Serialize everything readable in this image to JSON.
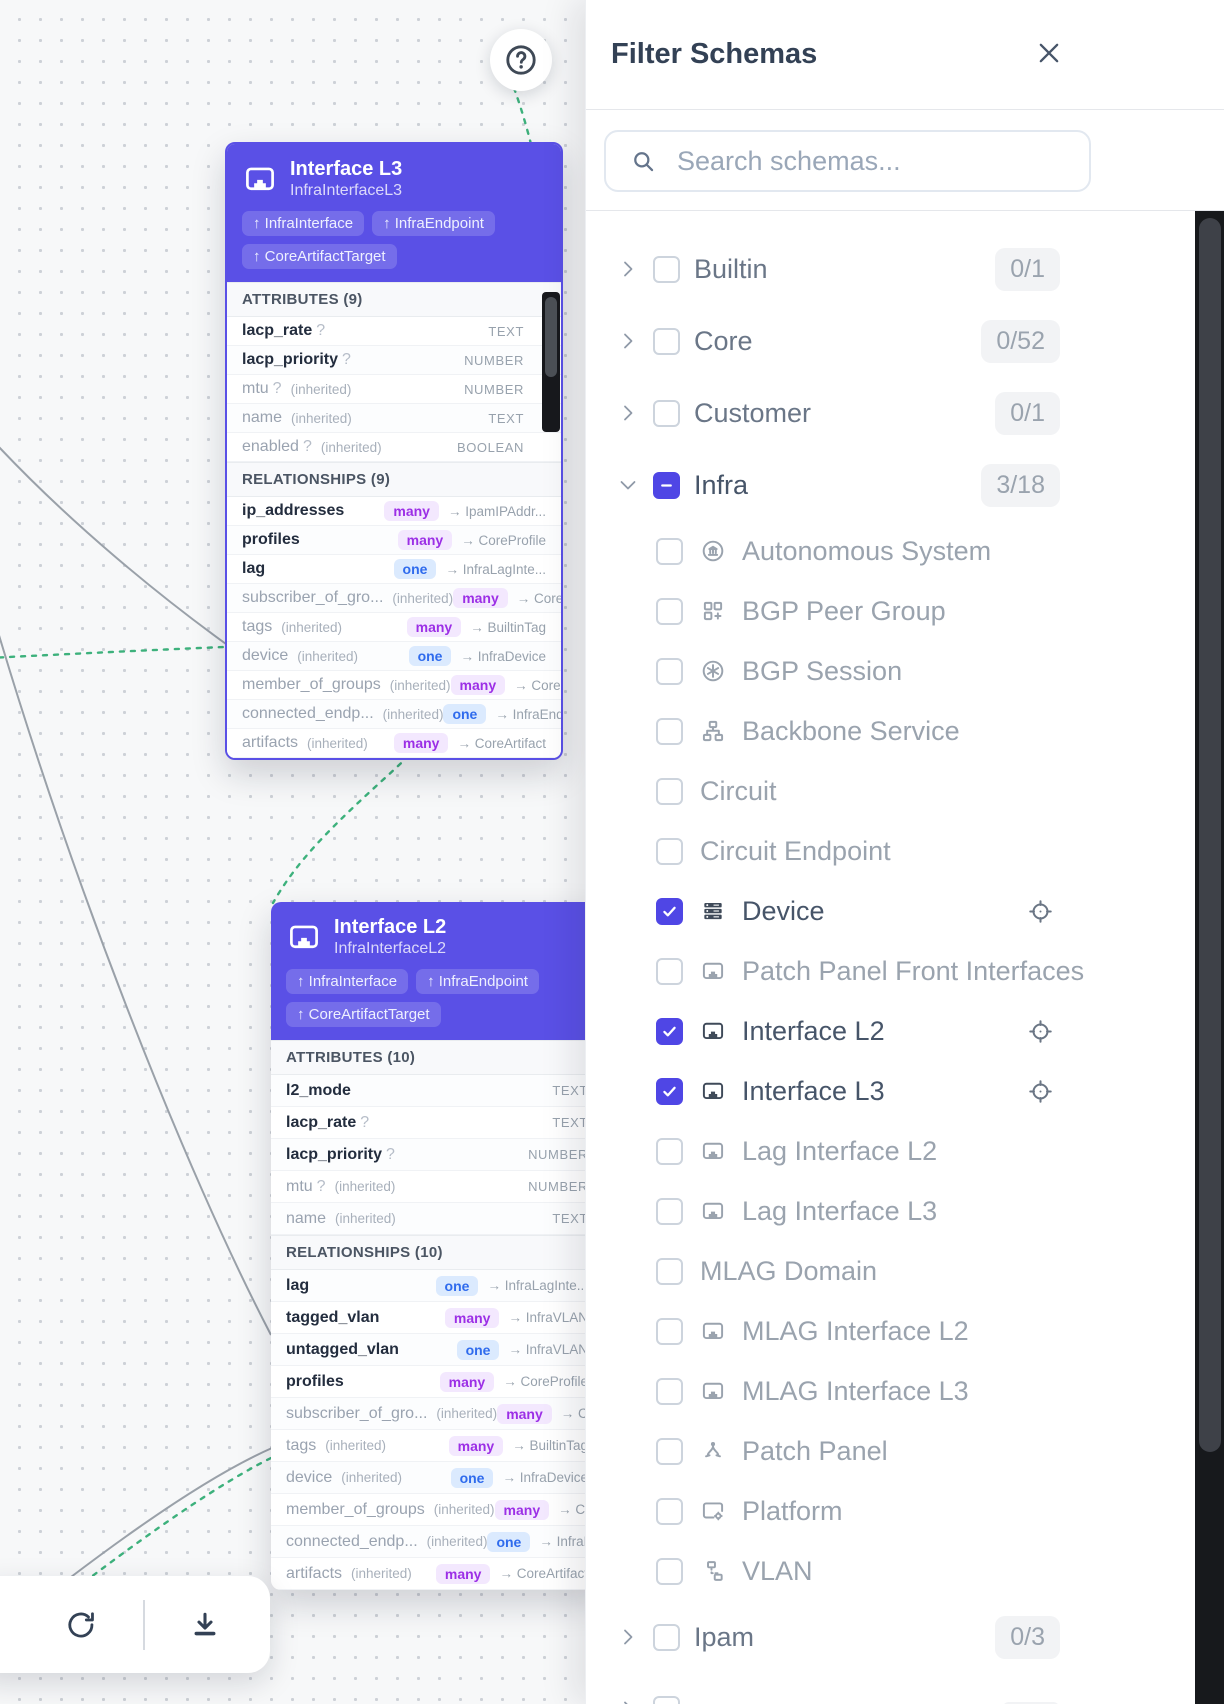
{
  "colors": {
    "accent": "#4f46e5",
    "card_header": "#5a50e6",
    "filter_button": "#6366f1",
    "many_badge": "#9c2fe6",
    "one_badge": "#2f6bed",
    "edge_green": "#3db17c",
    "edge_gray": "#9aa1a9"
  },
  "labels": {
    "inherited": "(inherited)",
    "optional_mark": "?",
    "arrow": "→"
  },
  "canvas": {
    "help_icon": "question-mark-icon",
    "toolbar": {
      "filter_icon": "filter-icon",
      "refresh_icon": "refresh-icon",
      "download_icon": "download-icon"
    },
    "cards": [
      {
        "title": "Interface L3",
        "subtitle": "InfraInterfaceL3",
        "icon": "ethernet-port-icon",
        "badges": [
          "↑ InfraInterface",
          "↑ InfraEndpoint",
          "↑ CoreArtifactTarget"
        ],
        "attributes_header": "ATTRIBUTES (9)",
        "attributes": [
          {
            "name": "lacp_rate",
            "optional": true,
            "inherited": false,
            "type": "TEXT"
          },
          {
            "name": "lacp_priority",
            "optional": true,
            "inherited": false,
            "type": "NUMBER"
          },
          {
            "name": "mtu",
            "optional": true,
            "inherited": true,
            "type": "NUMBER"
          },
          {
            "name": "name",
            "optional": false,
            "inherited": true,
            "type": "TEXT"
          },
          {
            "name": "enabled",
            "optional": true,
            "inherited": true,
            "type": "BOOLEAN"
          }
        ],
        "relationships_header": "RELATIONSHIPS (9)",
        "relationships": [
          {
            "name": "ip_addresses",
            "inherited": false,
            "cardinality": "many",
            "target": "IpamIPAddr..."
          },
          {
            "name": "profiles",
            "inherited": false,
            "cardinality": "many",
            "target": "CoreProfile"
          },
          {
            "name": "lag",
            "inherited": false,
            "cardinality": "one",
            "target": "InfraLagInte..."
          },
          {
            "name": "subscriber_of_gro...",
            "inherited": true,
            "cardinality": "many",
            "target": "CoreGroup"
          },
          {
            "name": "tags",
            "inherited": true,
            "cardinality": "many",
            "target": "BuiltinTag"
          },
          {
            "name": "device",
            "inherited": true,
            "cardinality": "one",
            "target": "InfraDevice"
          },
          {
            "name": "member_of_groups",
            "inherited": true,
            "cardinality": "many",
            "target": "CoreGroup"
          },
          {
            "name": "connected_endp...",
            "inherited": true,
            "cardinality": "one",
            "target": "InfraEndpoint"
          },
          {
            "name": "artifacts",
            "inherited": true,
            "cardinality": "many",
            "target": "CoreArtifact"
          }
        ]
      },
      {
        "title": "Interface L2",
        "subtitle": "InfraInterfaceL2",
        "icon": "ethernet-port-icon",
        "badges": [
          "↑ InfraInterface",
          "↑ InfraEndpoint",
          "↑ CoreArtifactTarget"
        ],
        "attributes_header": "ATTRIBUTES (10)",
        "attributes": [
          {
            "name": "l2_mode",
            "optional": false,
            "inherited": false,
            "type": "TEXT"
          },
          {
            "name": "lacp_rate",
            "optional": true,
            "inherited": false,
            "type": "TEXT"
          },
          {
            "name": "lacp_priority",
            "optional": true,
            "inherited": false,
            "type": "NUMBER"
          },
          {
            "name": "mtu",
            "optional": true,
            "inherited": true,
            "type": "NUMBER"
          },
          {
            "name": "name",
            "optional": false,
            "inherited": true,
            "type": "TEXT"
          }
        ],
        "relationships_header": "RELATIONSHIPS (10)",
        "relationships": [
          {
            "name": "lag",
            "inherited": false,
            "cardinality": "one",
            "target": "InfraLagInte..."
          },
          {
            "name": "tagged_vlan",
            "inherited": false,
            "cardinality": "many",
            "target": "InfraVLAN"
          },
          {
            "name": "untagged_vlan",
            "inherited": false,
            "cardinality": "one",
            "target": "InfraVLAN"
          },
          {
            "name": "profiles",
            "inherited": false,
            "cardinality": "many",
            "target": "CoreProfile"
          },
          {
            "name": "subscriber_of_gro...",
            "inherited": true,
            "cardinality": "many",
            "target": "CoreGroup"
          },
          {
            "name": "tags",
            "inherited": true,
            "cardinality": "many",
            "target": "BuiltinTag"
          },
          {
            "name": "device",
            "inherited": true,
            "cardinality": "one",
            "target": "InfraDevice"
          },
          {
            "name": "member_of_groups",
            "inherited": true,
            "cardinality": "many",
            "target": "CoreGroup"
          },
          {
            "name": "connected_endp...",
            "inherited": true,
            "cardinality": "one",
            "target": "InfraEndpoint"
          },
          {
            "name": "artifacts",
            "inherited": true,
            "cardinality": "many",
            "target": "CoreArtifact"
          }
        ]
      }
    ]
  },
  "panel": {
    "title": "Filter Schemas",
    "close_icon": "close-icon",
    "search": {
      "placeholder": "Search schemas...",
      "icon": "search-icon"
    },
    "groups": [
      {
        "label": "Builtin",
        "count": "0/1",
        "state": "unchecked",
        "expanded": false
      },
      {
        "label": "Core",
        "count": "0/52",
        "state": "unchecked",
        "expanded": false
      },
      {
        "label": "Customer",
        "count": "0/1",
        "state": "unchecked",
        "expanded": false
      },
      {
        "label": "Infra",
        "count": "3/18",
        "state": "indeterminate",
        "expanded": true,
        "children": [
          {
            "label": "Autonomous System",
            "icon": "autonomous-system-icon",
            "checked": false
          },
          {
            "label": "BGP Peer Group",
            "icon": "bgp-peer-group-icon",
            "checked": false
          },
          {
            "label": "BGP Session",
            "icon": "bgp-session-icon",
            "checked": false
          },
          {
            "label": "Backbone Service",
            "icon": "backbone-service-icon",
            "checked": false
          },
          {
            "label": "Circuit",
            "icon": null,
            "checked": false
          },
          {
            "label": "Circuit Endpoint",
            "icon": null,
            "checked": false
          },
          {
            "label": "Device",
            "icon": "device-icon",
            "checked": true,
            "locatable": true
          },
          {
            "label": "Patch Panel Front Interfaces",
            "icon": "ethernet-port-icon",
            "checked": false
          },
          {
            "label": "Interface L2",
            "icon": "ethernet-port-icon",
            "checked": true,
            "locatable": true
          },
          {
            "label": "Interface L3",
            "icon": "ethernet-port-icon",
            "checked": true,
            "locatable": true
          },
          {
            "label": "Lag Interface L2",
            "icon": "ethernet-port-icon",
            "checked": false
          },
          {
            "label": "Lag Interface L3",
            "icon": "ethernet-port-icon",
            "checked": false
          },
          {
            "label": "MLAG Domain",
            "icon": null,
            "checked": false
          },
          {
            "label": "MLAG Interface L2",
            "icon": "ethernet-port-icon",
            "checked": false
          },
          {
            "label": "MLAG Interface L3",
            "icon": "ethernet-port-icon",
            "checked": false
          },
          {
            "label": "Patch Panel",
            "icon": "patch-panel-icon",
            "checked": false
          },
          {
            "label": "Platform",
            "icon": "platform-icon",
            "checked": false
          },
          {
            "label": "VLAN",
            "icon": "vlan-icon",
            "checked": false
          }
        ]
      },
      {
        "label": "Ipam",
        "count": "0/3",
        "state": "unchecked",
        "expanded": false
      },
      {
        "label": "",
        "count": "",
        "state": "unchecked",
        "expanded": false,
        "partial": true
      }
    ]
  }
}
